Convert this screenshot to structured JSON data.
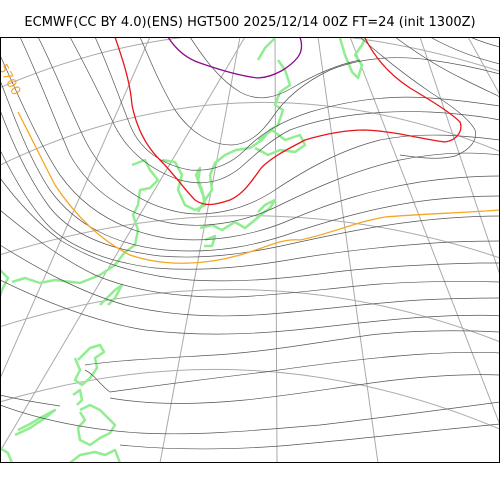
{
  "title": "ECMWF(CC BY 4.0)(ENS) HGT500 2025/12/14 00Z FT=24 (init 1300Z)",
  "map": {
    "field": "HGT500",
    "contour_label": "5700",
    "colors": {
      "background": "#ffffff",
      "frame": "#000000",
      "grid": "#aaaaaa",
      "contour": "#555555",
      "contour_5700": "#f5a623",
      "contour_5400": "#e8151b",
      "contour_5100": "#8b0a8b",
      "coastline": "#90ee90"
    }
  }
}
